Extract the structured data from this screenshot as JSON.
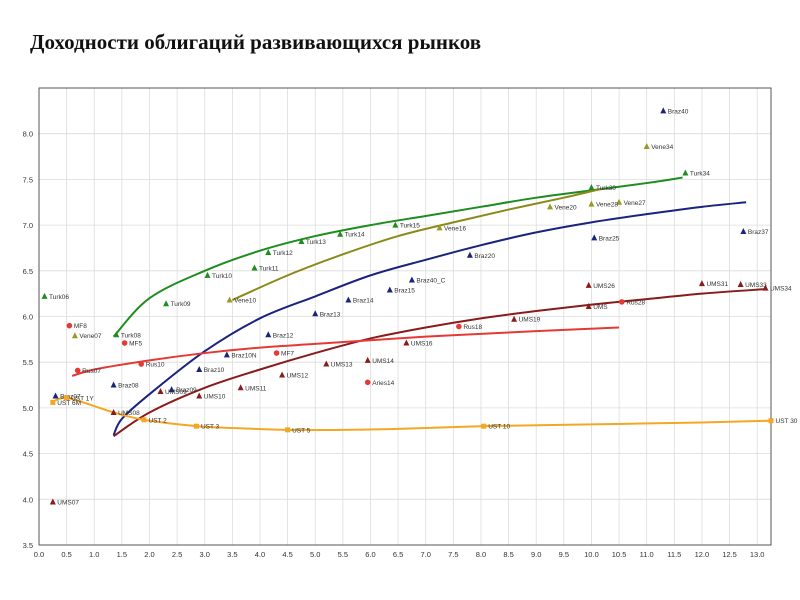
{
  "title": "Доходности облигаций развивающихся рынков",
  "chart_data": {
    "type": "scatter",
    "title": "Доходности облигаций развивающихся рынков",
    "xlabel": "",
    "ylabel": "",
    "xlim": [
      0,
      13.25
    ],
    "ylim": [
      3.5,
      8.5
    ],
    "grid": true,
    "xticks": [
      "0.0",
      "0.5",
      "1.0",
      "1.5",
      "2.0",
      "2.5",
      "3.0",
      "3.5",
      "4.0",
      "4.5",
      "5.0",
      "5.5",
      "6.0",
      "6.5",
      "7.0",
      "7.5",
      "8.0",
      "8.5",
      "9.0",
      "9.5",
      "10.0",
      "10.5",
      "11.0",
      "11.5",
      "12.0",
      "12.5",
      "13.0"
    ],
    "yticks": [
      "3.5",
      "4.0",
      "4.5",
      "5.0",
      "5.5",
      "6.0",
      "6.5",
      "7.0",
      "7.5",
      "8.0"
    ],
    "points": [
      {
        "label": "Turk06",
        "x": 0.1,
        "y": 6.22,
        "color": "#1e8c1e"
      },
      {
        "label": "Turk08",
        "x": 1.4,
        "y": 5.8,
        "color": "#1e8c1e"
      },
      {
        "label": "Turk09",
        "x": 2.3,
        "y": 6.14,
        "color": "#1e8c1e"
      },
      {
        "label": "Turk10",
        "x": 3.05,
        "y": 6.45,
        "color": "#1e8c1e"
      },
      {
        "label": "Turk11",
        "x": 3.9,
        "y": 6.53,
        "color": "#1e8c1e"
      },
      {
        "label": "Turk12",
        "x": 4.15,
        "y": 6.7,
        "color": "#1e8c1e"
      },
      {
        "label": "Turk13",
        "x": 4.75,
        "y": 6.82,
        "color": "#1e8c1e"
      },
      {
        "label": "Turk14",
        "x": 5.45,
        "y": 6.9,
        "color": "#1e8c1e"
      },
      {
        "label": "Turk15",
        "x": 6.45,
        "y": 7.0,
        "color": "#1e8c1e"
      },
      {
        "label": "Turk30",
        "x": 10.0,
        "y": 7.41,
        "color": "#1e8c1e"
      },
      {
        "label": "Turk34",
        "x": 11.7,
        "y": 7.57,
        "color": "#1e8c1e"
      },
      {
        "label": "Vene07",
        "x": 0.65,
        "y": 5.79,
        "color": "#9a9a22"
      },
      {
        "label": "Vene10",
        "x": 3.45,
        "y": 6.18,
        "color": "#9a9a22"
      },
      {
        "label": "Vene16",
        "x": 7.25,
        "y": 6.97,
        "color": "#9a9a22"
      },
      {
        "label": "Vene20",
        "x": 9.25,
        "y": 7.2,
        "color": "#9a9a22"
      },
      {
        "label": "Vene27",
        "x": 10.5,
        "y": 7.25,
        "color": "#9a9a22"
      },
      {
        "label": "Vene28",
        "x": 10.0,
        "y": 7.23,
        "color": "#9a9a22"
      },
      {
        "label": "Vene34",
        "x": 11.0,
        "y": 7.86,
        "color": "#9a9a22"
      },
      {
        "label": "Braz07",
        "x": 0.3,
        "y": 5.13,
        "color": "#1a237e"
      },
      {
        "label": "Braz08",
        "x": 1.35,
        "y": 5.25,
        "color": "#1a237e"
      },
      {
        "label": "Braz09",
        "x": 2.4,
        "y": 5.2,
        "color": "#1a237e"
      },
      {
        "label": "Braz10",
        "x": 2.9,
        "y": 5.42,
        "color": "#1a237e"
      },
      {
        "label": "Braz10N",
        "x": 3.4,
        "y": 5.58,
        "color": "#1a237e"
      },
      {
        "label": "Braz12",
        "x": 4.15,
        "y": 5.8,
        "color": "#1a237e"
      },
      {
        "label": "Braz13",
        "x": 5.0,
        "y": 6.03,
        "color": "#1a237e"
      },
      {
        "label": "Braz14",
        "x": 5.6,
        "y": 6.18,
        "color": "#1a237e"
      },
      {
        "label": "Braz15",
        "x": 6.35,
        "y": 6.29,
        "color": "#1a237e"
      },
      {
        "label": "Braz40_C",
        "x": 6.75,
        "y": 6.4,
        "color": "#1a237e"
      },
      {
        "label": "Braz20",
        "x": 7.8,
        "y": 6.67,
        "color": "#1a237e"
      },
      {
        "label": "Braz25",
        "x": 10.05,
        "y": 6.86,
        "color": "#1a237e"
      },
      {
        "label": "Braz37",
        "x": 12.75,
        "y": 6.93,
        "color": "#1a237e"
      },
      {
        "label": "Braz40",
        "x": 11.3,
        "y": 8.25,
        "color": "#1a237e"
      },
      {
        "label": "UMS07",
        "x": 0.25,
        "y": 3.97,
        "color": "#8b1a1a"
      },
      {
        "label": "UMS08",
        "x": 1.35,
        "y": 4.95,
        "color": "#8b1a1a"
      },
      {
        "label": "UMS09",
        "x": 2.2,
        "y": 5.18,
        "color": "#8b1a1a"
      },
      {
        "label": "UMS10",
        "x": 2.9,
        "y": 5.13,
        "color": "#8b1a1a"
      },
      {
        "label": "UMS11",
        "x": 3.65,
        "y": 5.22,
        "color": "#8b1a1a"
      },
      {
        "label": "UMS12",
        "x": 4.4,
        "y": 5.36,
        "color": "#8b1a1a"
      },
      {
        "label": "UMS13",
        "x": 5.2,
        "y": 5.48,
        "color": "#8b1a1a"
      },
      {
        "label": "UMS14",
        "x": 5.95,
        "y": 5.52,
        "color": "#8b1a1a"
      },
      {
        "label": "UMS16",
        "x": 6.65,
        "y": 5.71,
        "color": "#8b1a1a"
      },
      {
        "label": "UMS19",
        "x": 8.6,
        "y": 5.97,
        "color": "#8b1a1a"
      },
      {
        "label": "UMS26",
        "x": 9.95,
        "y": 6.34,
        "color": "#8b1a1a"
      },
      {
        "label": "UMS31",
        "x": 12.0,
        "y": 6.36,
        "color": "#8b1a1a"
      },
      {
        "label": "UMS33",
        "x": 12.7,
        "y": 6.35,
        "color": "#8b1a1a"
      },
      {
        "label": "UMS34",
        "x": 13.15,
        "y": 6.31,
        "color": "#8b1a1a"
      },
      {
        "label": "UMS",
        "x": 9.95,
        "y": 6.11,
        "color": "#8b1a1a"
      },
      {
        "label": "Rus07",
        "x": 0.7,
        "y": 5.41,
        "color": "#e53935"
      },
      {
        "label": "MF8",
        "x": 0.55,
        "y": 5.9,
        "color": "#e53935"
      },
      {
        "label": "MF5",
        "x": 1.55,
        "y": 5.71,
        "color": "#e53935"
      },
      {
        "label": "Rus10",
        "x": 1.85,
        "y": 5.48,
        "color": "#e53935"
      },
      {
        "label": "MF7",
        "x": 4.3,
        "y": 5.6,
        "color": "#e53935"
      },
      {
        "label": "Aries14",
        "x": 5.95,
        "y": 5.28,
        "color": "#e53935"
      },
      {
        "label": "Rus18",
        "x": 7.6,
        "y": 5.89,
        "color": "#e53935"
      },
      {
        "label": "Rus28",
        "x": 10.55,
        "y": 6.16,
        "color": "#e53935"
      },
      {
        "label": "UST 6M",
        "x": 0.25,
        "y": 5.06,
        "color": "#f5a623"
      },
      {
        "label": "UST 1Y",
        "x": 0.5,
        "y": 5.11,
        "color": "#f5a623"
      },
      {
        "label": "UST 2",
        "x": 1.9,
        "y": 4.87,
        "color": "#f5a623"
      },
      {
        "label": "UST 3",
        "x": 2.85,
        "y": 4.8,
        "color": "#f5a623"
      },
      {
        "label": "UST 5",
        "x": 4.5,
        "y": 4.76,
        "color": "#f5a623"
      },
      {
        "label": "UST 10",
        "x": 8.05,
        "y": 4.8,
        "color": "#f5a623"
      },
      {
        "label": "UST 30",
        "x": 13.25,
        "y": 4.86,
        "color": "#f5a623"
      }
    ],
    "series": [
      {
        "color": "#1e8c1e",
        "x": [
          1.35,
          2.0,
          3.0,
          4.0,
          5.0,
          6.0,
          7.0,
          8.0,
          9.0,
          10.0,
          11.0,
          11.65
        ],
        "values": [
          5.78,
          6.2,
          6.5,
          6.72,
          6.88,
          7.0,
          7.1,
          7.2,
          7.3,
          7.38,
          7.46,
          7.52
        ]
      },
      {
        "color": "#8a8a1a",
        "x": [
          3.5,
          4.5,
          5.5,
          6.5,
          7.5,
          8.5,
          9.5,
          10.2
        ],
        "values": [
          6.18,
          6.45,
          6.68,
          6.88,
          7.03,
          7.17,
          7.3,
          7.4
        ]
      },
      {
        "color": "#1a237e",
        "x": [
          1.35,
          1.5,
          2.0,
          3.0,
          4.0,
          5.0,
          6.0,
          7.0,
          8.0,
          9.0,
          10.0,
          11.0,
          12.0,
          12.8
        ],
        "values": [
          4.7,
          4.88,
          5.15,
          5.62,
          5.98,
          6.22,
          6.45,
          6.62,
          6.78,
          6.92,
          7.03,
          7.12,
          7.2,
          7.25
        ]
      },
      {
        "color": "#8b1a1a",
        "x": [
          1.35,
          2.0,
          3.0,
          4.0,
          5.0,
          6.0,
          7.0,
          8.0,
          9.0,
          10.0,
          11.0,
          12.0,
          13.15
        ],
        "values": [
          4.69,
          4.95,
          5.22,
          5.42,
          5.6,
          5.76,
          5.88,
          5.98,
          6.06,
          6.13,
          6.19,
          6.25,
          6.3
        ]
      },
      {
        "color": "#e53935",
        "x": [
          0.6,
          1.0,
          2.0,
          3.0,
          4.0,
          5.0,
          6.0,
          7.0,
          8.0,
          9.0,
          10.5
        ],
        "values": [
          5.35,
          5.42,
          5.52,
          5.6,
          5.66,
          5.7,
          5.74,
          5.78,
          5.81,
          5.84,
          5.88
        ]
      },
      {
        "color": "#f5a623",
        "x": [
          0.25,
          0.5,
          1.0,
          1.35,
          1.9,
          2.85,
          3.5,
          4.5,
          5.5,
          6.5,
          8.05,
          10.0,
          12.0,
          13.25
        ],
        "values": [
          5.07,
          5.11,
          5.02,
          4.95,
          4.87,
          4.8,
          4.78,
          4.76,
          4.76,
          4.77,
          4.8,
          4.82,
          4.84,
          4.86
        ]
      }
    ]
  }
}
